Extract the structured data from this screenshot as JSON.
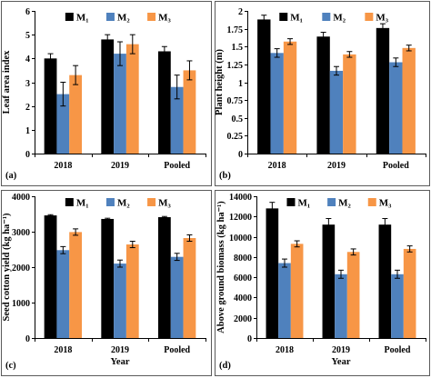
{
  "chart_data": [
    {
      "type": "bar",
      "panel_label": "(a)",
      "ylabel": "Leaf area index",
      "xlabel": "",
      "ylim": [
        0,
        6
      ],
      "yticks": [
        0,
        1,
        2,
        3,
        4,
        5,
        6
      ],
      "ytick_labels": [
        "0",
        "1",
        "2",
        "3",
        "4",
        "5",
        "6"
      ],
      "categories": [
        "2018",
        "2019",
        "Pooled"
      ],
      "legend": "top",
      "series": [
        {
          "name": "M₁",
          "color": "#000000",
          "values": [
            4.0,
            4.8,
            4.3
          ],
          "errors": [
            0.2,
            0.2,
            0.2
          ]
        },
        {
          "name": "M₂",
          "color": "#4f81bd",
          "values": [
            2.5,
            4.2,
            2.8
          ],
          "errors": [
            0.5,
            0.5,
            0.5
          ]
        },
        {
          "name": "M₃",
          "color": "#f79646",
          "values": [
            3.3,
            4.6,
            3.5
          ],
          "errors": [
            0.4,
            0.4,
            0.4
          ]
        }
      ]
    },
    {
      "type": "bar",
      "panel_label": "(b)",
      "ylabel": "Plant height (m)",
      "xlabel": "",
      "ylim": [
        0,
        2
      ],
      "yticks": [
        0,
        0.25,
        0.5,
        0.75,
        1,
        1.25,
        1.5,
        1.75,
        2
      ],
      "ytick_labels": [
        "0",
        "0.25",
        "0.5",
        "0.75",
        "1",
        "1.25",
        "1.5",
        "1.75",
        "2"
      ],
      "categories": [
        "2018",
        "2019",
        "Pooled"
      ],
      "legend": "top",
      "series": [
        {
          "name": "M₁",
          "color": "#000000",
          "values": [
            1.88,
            1.64,
            1.76
          ],
          "errors": [
            0.06,
            0.06,
            0.06
          ]
        },
        {
          "name": "M₂",
          "color": "#4f81bd",
          "values": [
            1.41,
            1.16,
            1.28
          ],
          "errors": [
            0.06,
            0.06,
            0.06
          ]
        },
        {
          "name": "M₃",
          "color": "#f79646",
          "values": [
            1.57,
            1.39,
            1.48
          ],
          "errors": [
            0.04,
            0.04,
            0.04
          ]
        }
      ]
    },
    {
      "type": "bar",
      "panel_label": "(c)",
      "ylabel": "Seed cotton yield (kg ha⁻¹)",
      "xlabel": "Year",
      "ylim": [
        0,
        4000
      ],
      "yticks": [
        0,
        1000,
        2000,
        3000,
        4000
      ],
      "ytick_labels": [
        "0",
        "1000",
        "2000",
        "3000",
        "4000"
      ],
      "categories": [
        "2018",
        "2019",
        "Pooled"
      ],
      "legend": "top",
      "series": [
        {
          "name": "M₁",
          "color": "#000000",
          "values": [
            3460,
            3360,
            3410
          ],
          "errors": [
            20,
            20,
            20
          ]
        },
        {
          "name": "M₂",
          "color": "#4f81bd",
          "values": [
            2480,
            2100,
            2290
          ],
          "errors": [
            100,
            100,
            100
          ]
        },
        {
          "name": "M₃",
          "color": "#f79646",
          "values": [
            2990,
            2640,
            2820
          ],
          "errors": [
            90,
            90,
            90
          ]
        }
      ]
    },
    {
      "type": "bar",
      "panel_label": "(d)",
      "ylabel": "Above ground biomass (kg ha⁻¹)",
      "xlabel": "Year",
      "ylim": [
        0,
        14000
      ],
      "yticks": [
        0,
        2000,
        4000,
        6000,
        8000,
        10000,
        12000,
        14000
      ],
      "ytick_labels": [
        "0",
        "2000",
        "4000",
        "6000",
        "8000",
        "10000",
        "12000",
        "14000"
      ],
      "categories": [
        "2018",
        "2019",
        "Pooled"
      ],
      "legend": "top",
      "series": [
        {
          "name": "M₁",
          "color": "#000000",
          "values": [
            12800,
            11200,
            11200
          ],
          "errors": [
            600,
            600,
            600
          ]
        },
        {
          "name": "M₂",
          "color": "#4f81bd",
          "values": [
            7400,
            6300,
            6300
          ],
          "errors": [
            400,
            400,
            400
          ]
        },
        {
          "name": "M₃",
          "color": "#f79646",
          "values": [
            9300,
            8500,
            8800
          ],
          "errors": [
            300,
            300,
            300
          ]
        }
      ]
    }
  ]
}
